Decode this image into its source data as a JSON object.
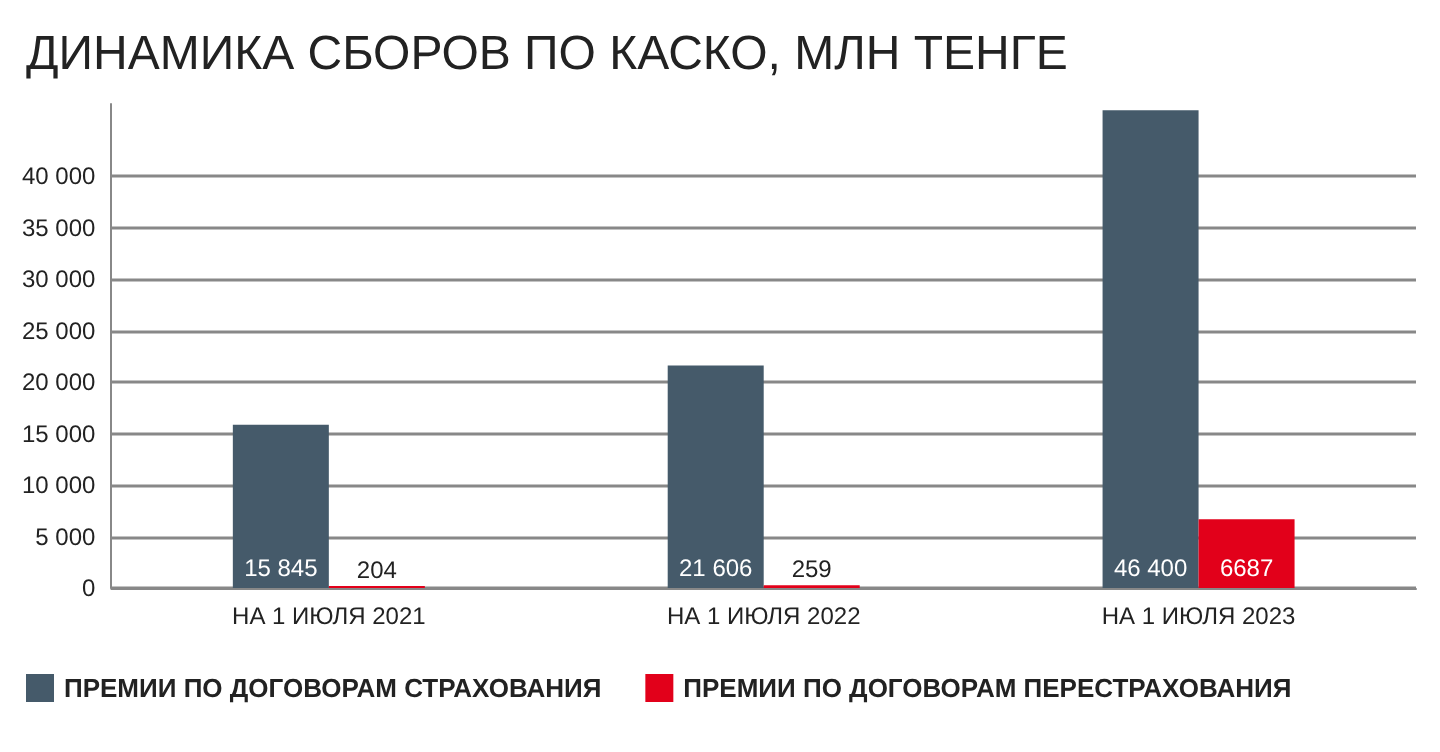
{
  "chart_data": {
    "type": "bar",
    "title": "ДИНАМИКА СБОРОВ ПО КАСКО, МЛН ТЕНГЕ",
    "categories": [
      "НА 1 ИЮЛЯ 2021",
      "НА 1 ИЮЛЯ 2022",
      "НА 1 ИЮЛЯ 2023"
    ],
    "series": [
      {
        "name": "ПРЕМИИ ПО ДОГОВОРАМ СТРАХОВАНИЯ",
        "color": "#455a6a",
        "values": [
          15845,
          21606,
          46400
        ],
        "value_labels": [
          "15 845",
          "21 606",
          "46 400"
        ]
      },
      {
        "name": "ПРЕМИИ ПО ДОГОВОРАМ ПЕРЕСТРАХОВАНИЯ",
        "color": "#e2001a",
        "values": [
          204,
          259,
          6687
        ],
        "value_labels": [
          "204",
          "259",
          "6687"
        ]
      }
    ],
    "ylim": [
      0,
      47000
    ],
    "yticks": [
      0,
      {
        "value": 5000,
        "label": "5 000"
      },
      {
        "value": 10000,
        "label": "10 000"
      },
      {
        "value": 15000,
        "label": "15 000"
      },
      {
        "value": 20000,
        "label": "20 000"
      },
      {
        "value": 25000,
        "label": "25 000"
      },
      {
        "value": 30000,
        "label": "30 000"
      },
      {
        "value": 35000,
        "label": "35 000"
      },
      {
        "value": 40000,
        "label": "40 000"
      }
    ],
    "grid": "y",
    "legend": "bottom left"
  }
}
